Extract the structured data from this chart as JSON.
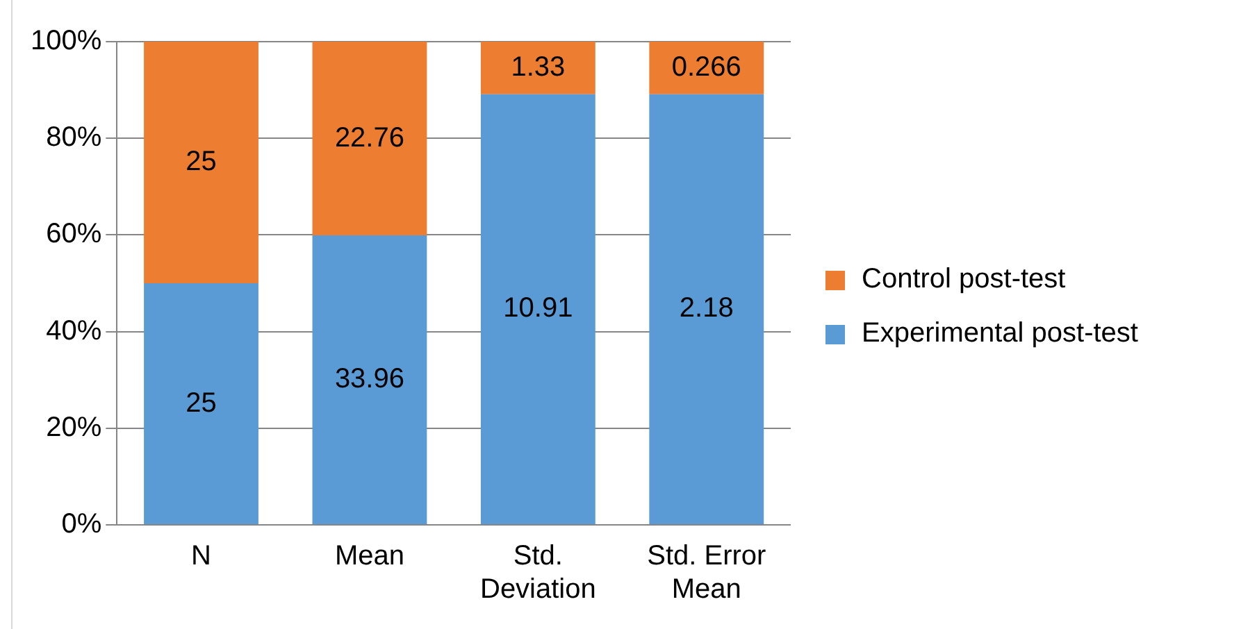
{
  "chart_data": {
    "type": "bar",
    "stacked": true,
    "categories": [
      "N",
      "Mean",
      "Std. Deviation",
      "Std. Error Mean"
    ],
    "series": [
      {
        "name": "Experimental post-test",
        "color": "#5b9bd5",
        "values": [
          50,
          59.9,
          89.1,
          89.1
        ]
      },
      {
        "name": "Control post-test",
        "color": "#ed7d31",
        "values": [
          50,
          40.1,
          10.9,
          10.9
        ]
      }
    ],
    "annotations": [
      "25",
      "33.96",
      "10.91",
      "2.18",
      "25",
      "22.76",
      "1.33",
      "0.266"
    ],
    "ylim": [
      0,
      100
    ],
    "yticks": [
      {
        "value": 0,
        "label": "0%"
      },
      {
        "value": 20,
        "label": "20%"
      },
      {
        "value": 40,
        "label": "40%"
      },
      {
        "value": 60,
        "label": "60%"
      },
      {
        "value": 80,
        "label": "80%"
      },
      {
        "value": 100,
        "label": "100%"
      }
    ],
    "grid": "y",
    "legend": "right"
  }
}
